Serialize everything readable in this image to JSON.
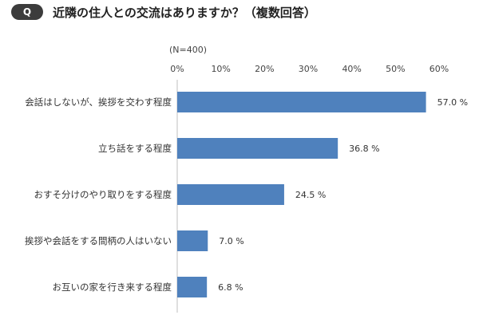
{
  "header": {
    "badge": "Q",
    "title": "近隣の住人との交流はありますか？（複数回答）"
  },
  "chart_data": {
    "type": "bar",
    "orientation": "horizontal",
    "note": "(N=400)",
    "categories": [
      "会話はしないが、挨拶を交わす程度",
      "立ち話をする程度",
      "おすそ分けのやり取りをする程度",
      "挨拶や会話をする間柄の人はいない",
      "お互いの家を行き来する程度"
    ],
    "values": [
      57.0,
      36.8,
      24.5,
      7.0,
      6.8
    ],
    "value_labels": [
      "57.0 %",
      "36.8 %",
      "24.5 %",
      "7.0 %",
      "6.8 %"
    ],
    "xlim": [
      0,
      60
    ],
    "ticks": [
      0,
      10,
      20,
      30,
      40,
      50,
      60
    ],
    "tick_labels": [
      "0%",
      "10%",
      "20%",
      "30%",
      "40%",
      "50%",
      "60%"
    ],
    "bar_color": "#4f81bd",
    "grid": false
  }
}
